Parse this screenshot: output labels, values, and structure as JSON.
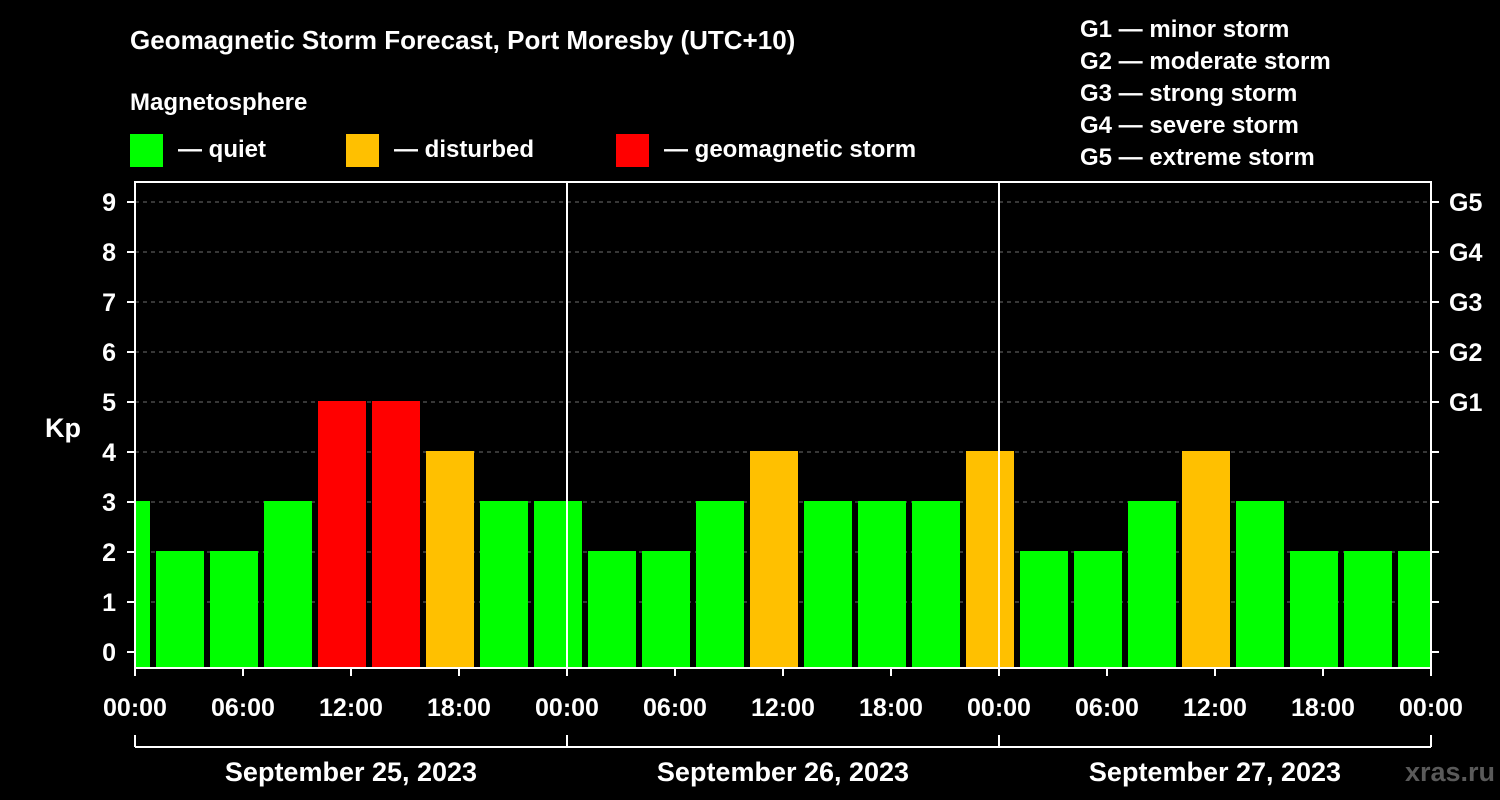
{
  "chart_data": {
    "type": "bar",
    "title": "Geomagnetic Storm Forecast, Port Moresby (UTC+10)",
    "legend": {
      "heading": "Magnetosphere",
      "items": [
        {
          "label": "— quiet",
          "color": "#00ff00"
        },
        {
          "label": "— disturbed",
          "color": "#ffc000"
        },
        {
          "label": "— geomagnetic storm",
          "color": "#ff0000"
        }
      ],
      "scale": [
        "G1 — minor storm",
        "G2 — moderate storm",
        "G3 — strong storm",
        "G4 — severe storm",
        "G5 — extreme storm"
      ]
    },
    "ylabel": "Kp",
    "ylim": [
      0,
      9
    ],
    "yticks": [
      "0",
      "1",
      "2",
      "3",
      "4",
      "5",
      "6",
      "7",
      "8",
      "9"
    ],
    "right_ticks": [
      {
        "kp": 5,
        "label": "G1"
      },
      {
        "kp": 6,
        "label": "G2"
      },
      {
        "kp": 7,
        "label": "G3"
      },
      {
        "kp": 8,
        "label": "G4"
      },
      {
        "kp": 9,
        "label": "G5"
      }
    ],
    "xlim_hours": [
      0,
      72
    ],
    "xticks": [
      "00:00",
      "06:00",
      "12:00",
      "18:00",
      "00:00",
      "06:00",
      "12:00",
      "18:00",
      "00:00",
      "06:00",
      "12:00",
      "18:00",
      "00:00"
    ],
    "days": [
      "September 25, 2023",
      "September 26, 2023",
      "September 27, 2023"
    ],
    "bars": [
      {
        "start": 0,
        "end": 1,
        "kp": 3
      },
      {
        "start": 1,
        "end": 4,
        "kp": 2
      },
      {
        "start": 4,
        "end": 7,
        "kp": 2
      },
      {
        "start": 7,
        "end": 10,
        "kp": 3
      },
      {
        "start": 10,
        "end": 13,
        "kp": 5
      },
      {
        "start": 13,
        "end": 16,
        "kp": 5
      },
      {
        "start": 16,
        "end": 19,
        "kp": 4
      },
      {
        "start": 19,
        "end": 22,
        "kp": 3
      },
      {
        "start": 22,
        "end": 25,
        "kp": 3
      },
      {
        "start": 25,
        "end": 28,
        "kp": 2
      },
      {
        "start": 28,
        "end": 31,
        "kp": 2
      },
      {
        "start": 31,
        "end": 34,
        "kp": 3
      },
      {
        "start": 34,
        "end": 37,
        "kp": 4
      },
      {
        "start": 37,
        "end": 40,
        "kp": 3
      },
      {
        "start": 40,
        "end": 43,
        "kp": 3
      },
      {
        "start": 43,
        "end": 46,
        "kp": 3
      },
      {
        "start": 46,
        "end": 49,
        "kp": 4
      },
      {
        "start": 49,
        "end": 52,
        "kp": 2
      },
      {
        "start": 52,
        "end": 55,
        "kp": 2
      },
      {
        "start": 55,
        "end": 58,
        "kp": 3
      },
      {
        "start": 58,
        "end": 61,
        "kp": 4
      },
      {
        "start": 61,
        "end": 64,
        "kp": 3
      },
      {
        "start": 64,
        "end": 67,
        "kp": 2
      },
      {
        "start": 67,
        "end": 70,
        "kp": 2
      },
      {
        "start": 70,
        "end": 72,
        "kp": 2
      }
    ],
    "grid": true,
    "watermark": "xras.ru"
  }
}
